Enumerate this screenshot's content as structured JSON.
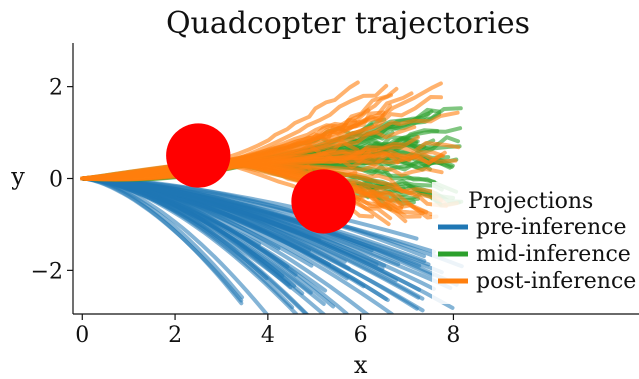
{
  "chart_data": {
    "type": "line",
    "title": "Quadcopter trajectories",
    "xlabel": "x",
    "ylabel": "y",
    "xlim": [
      -0.2,
      12
    ],
    "ylim": [
      -2.95,
      2.95
    ],
    "xticks": [
      0,
      2,
      4,
      6,
      8
    ],
    "yticks": [
      -2,
      0,
      2
    ],
    "ytick_labels": [
      "−2",
      "0",
      "2"
    ],
    "grid": false,
    "legend": {
      "title": "Projections",
      "placement": "right",
      "entries": [
        {
          "label": "pre-inference",
          "color": "#1f77b4"
        },
        {
          "label": "mid-inference",
          "color": "#2ca02c"
        },
        {
          "label": "post-inference",
          "color": "#ff7f0e"
        }
      ]
    },
    "obstacles": [
      {
        "center": [
          2.5,
          0.5
        ],
        "radius": 0.7,
        "color": "#ff0000"
      },
      {
        "center": [
          5.2,
          -0.5
        ],
        "radius": 0.7,
        "color": "#ff0000"
      }
    ],
    "series": [
      {
        "name": "pre-inference",
        "color": "#1f77b4",
        "trajectory_count": 60,
        "start": [
          0,
          0
        ],
        "endpoint_x_range": [
          3.4,
          8.2
        ],
        "endpoint_y_range": [
          -3.2,
          -1.3
        ]
      },
      {
        "name": "mid-inference",
        "color": "#2ca02c",
        "trajectory_count": 45,
        "start": [
          0,
          0
        ],
        "endpoint_x_range": [
          6.2,
          8.2
        ],
        "endpoint_y_range": [
          -0.6,
          1.6
        ]
      },
      {
        "name": "post-inference",
        "color": "#ff7f0e",
        "trajectory_count": 45,
        "start": [
          0,
          0
        ],
        "endpoint_x_range": [
          5.8,
          8.2
        ],
        "endpoint_y_range": [
          -0.9,
          2.2
        ]
      }
    ]
  }
}
